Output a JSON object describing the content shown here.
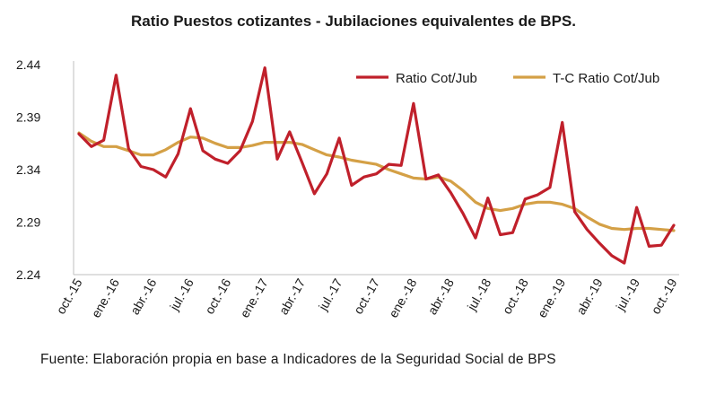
{
  "chart_data": {
    "type": "line",
    "title": "Ratio Puestos cotizantes - Jubilaciones  equivalentes de BPS.",
    "xlabel": "",
    "ylabel": "",
    "ylim": [
      2.24,
      2.44
    ],
    "yticks": [
      "2.44",
      "2.39",
      "2.34",
      "2.29",
      "2.24"
    ],
    "ytick_values": [
      2.44,
      2.39,
      2.34,
      2.29,
      2.24
    ],
    "categories": [
      "oct.-15",
      "nov.-15",
      "dic.-15",
      "ene.-16",
      "feb.-16",
      "mar.-16",
      "abr.-16",
      "may.-16",
      "jun.-16",
      "jul.-16",
      "ago.-16",
      "sep.-16",
      "oct.-16",
      "nov.-16",
      "dic.-16",
      "ene.-17",
      "feb.-17",
      "mar.-17",
      "abr.-17",
      "may.-17",
      "jun.-17",
      "jul.-17",
      "ago.-17",
      "sep.-17",
      "oct.-17",
      "nov.-17",
      "dic.-17",
      "ene.-18",
      "feb.-18",
      "mar.-18",
      "abr.-18",
      "may.-18",
      "jun.-18",
      "jul.-18",
      "ago.-18",
      "sep.-18",
      "oct.-18",
      "nov.-18",
      "dic.-18",
      "ene.-19",
      "feb.-19",
      "mar.-19",
      "abr.-19",
      "may.-19",
      "jun.-19",
      "jul.-19",
      "ago.-19",
      "sep.-19",
      "oct.-19"
    ],
    "tick_labels": [
      "oct.-15",
      "ene.-16",
      "abr.-16",
      "jul.-16",
      "oct.-16",
      "ene.-17",
      "abr.-17",
      "jul.-17",
      "oct.-17",
      "ene.-18",
      "abr.-18",
      "jul.-18",
      "oct.-18",
      "ene.-19",
      "abr.-19",
      "jul.-19",
      "oct.-19"
    ],
    "series": [
      {
        "name": "Ratio Cot/Jub",
        "color": "#C0202B",
        "values": [
          2.374,
          2.362,
          2.368,
          2.43,
          2.36,
          2.343,
          2.34,
          2.333,
          2.355,
          2.398,
          2.358,
          2.35,
          2.346,
          2.358,
          2.386,
          2.437,
          2.35,
          2.376,
          2.347,
          2.317,
          2.336,
          2.37,
          2.325,
          2.333,
          2.336,
          2.345,
          2.344,
          2.403,
          2.331,
          2.335,
          2.318,
          2.298,
          2.275,
          2.313,
          2.278,
          2.28,
          2.312,
          2.316,
          2.323,
          2.385,
          2.3,
          2.283,
          2.27,
          2.258,
          2.251,
          2.304,
          2.267,
          2.268,
          2.287
        ]
      },
      {
        "name": "T-C Ratio Cot/Jub",
        "color": "#D4A046",
        "values": [
          2.375,
          2.367,
          2.362,
          2.362,
          2.358,
          2.354,
          2.354,
          2.359,
          2.366,
          2.371,
          2.37,
          2.365,
          2.361,
          2.361,
          2.363,
          2.366,
          2.366,
          2.366,
          2.364,
          2.359,
          2.354,
          2.352,
          2.349,
          2.347,
          2.345,
          2.34,
          2.336,
          2.332,
          2.331,
          2.333,
          2.329,
          2.32,
          2.309,
          2.303,
          2.301,
          2.303,
          2.307,
          2.309,
          2.309,
          2.307,
          2.303,
          2.295,
          2.288,
          2.284,
          2.283,
          2.284,
          2.284,
          2.283,
          2.282
        ]
      }
    ],
    "grid": false,
    "legend_position": "top-right"
  },
  "footer": {
    "source": "Fuente: Elaboración propia en base a Indicadores de la Seguridad Social de BPS"
  }
}
